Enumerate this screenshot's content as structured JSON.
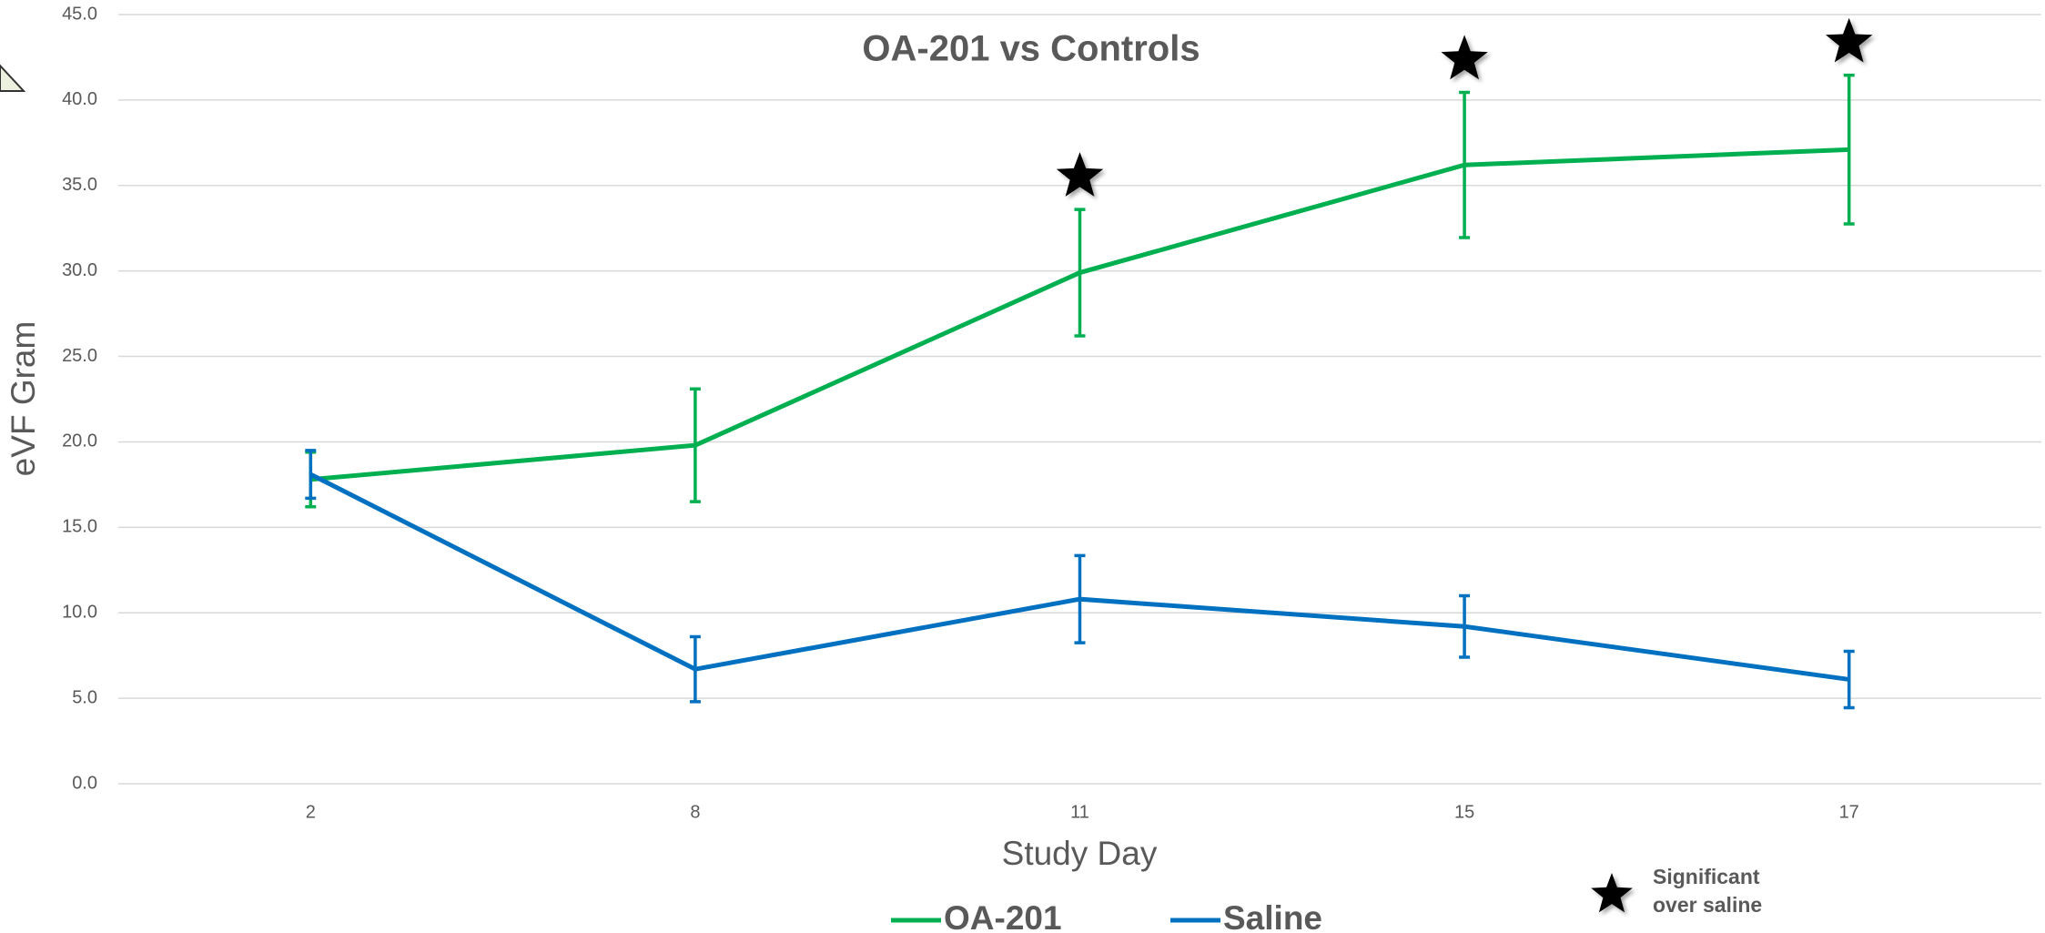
{
  "chart_data": {
    "type": "line",
    "title": "OA-201 vs Controls",
    "x_label": "Study Day",
    "y_label": "eVF Gram",
    "categories": [
      "2",
      "8",
      "11",
      "15",
      "17"
    ],
    "series": [
      {
        "name": "OA-201",
        "color": "#00b050",
        "values": [
          17.8,
          19.8,
          29.9,
          36.2,
          37.1
        ],
        "errors": [
          1.6,
          3.3,
          3.7,
          4.25,
          4.35
        ],
        "significant": [
          false,
          false,
          true,
          true,
          true
        ]
      },
      {
        "name": "Saline",
        "color": "#0070c0",
        "values": [
          18.1,
          6.7,
          10.8,
          9.2,
          6.1
        ],
        "errors": [
          1.4,
          1.9,
          2.55,
          1.8,
          1.65
        ]
      }
    ],
    "ylim": [
      0,
      45
    ],
    "yticks": [
      {
        "value": 0,
        "label": "0.0"
      },
      {
        "value": 5,
        "label": "5.0"
      },
      {
        "value": 10,
        "label": "10.0"
      },
      {
        "value": 15,
        "label": "15.0"
      },
      {
        "value": 20,
        "label": "20.0"
      },
      {
        "value": 25,
        "label": "25.0"
      },
      {
        "value": 30,
        "label": "30.0"
      },
      {
        "value": 35,
        "label": "35.0"
      },
      {
        "value": 40,
        "label": "40.0"
      },
      {
        "value": 45,
        "label": "45.0"
      }
    ],
    "grid": true,
    "legend": "bottom",
    "annotation": [
      "Significant",
      "over saline"
    ]
  }
}
